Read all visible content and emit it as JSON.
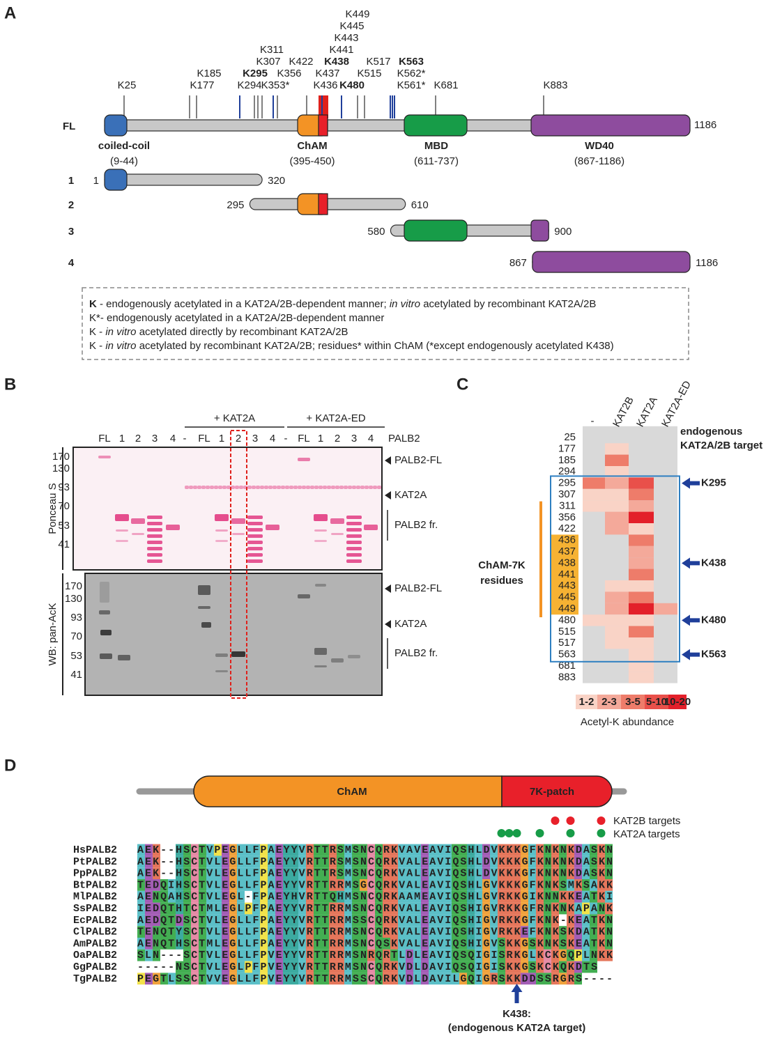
{
  "panel_labels": [
    "A",
    "B",
    "C",
    "D"
  ],
  "panel_a": {
    "sites": [
      {
        "label": "K25",
        "color": "#808080",
        "bold": false
      },
      {
        "label": "K177",
        "color": "#808080",
        "bold": false
      },
      {
        "label": "K185",
        "color": "#808080",
        "bold": false
      },
      {
        "label": "K294",
        "color": "#808080",
        "bold": false
      },
      {
        "label": "K295",
        "color": "#1f3f9a",
        "bold": true
      },
      {
        "label": "K307",
        "color": "#808080",
        "bold": false
      },
      {
        "label": "K311",
        "color": "#808080",
        "bold": false
      },
      {
        "label": "K353*",
        "color": "#1f3f9a",
        "bold": false
      },
      {
        "label": "K356",
        "color": "#808080",
        "bold": false
      },
      {
        "label": "K422",
        "color": "#808080",
        "bold": false
      },
      {
        "label": "K436",
        "color": "#e0201b",
        "bold": false
      },
      {
        "label": "K437",
        "color": "#e0201b",
        "bold": false
      },
      {
        "label": "K438",
        "color": "#1f3f9a",
        "bold": true
      },
      {
        "label": "K441",
        "color": "#e0201b",
        "bold": false
      },
      {
        "label": "K443",
        "color": "#e0201b",
        "bold": false
      },
      {
        "label": "K445",
        "color": "#e0201b",
        "bold": false
      },
      {
        "label": "K449",
        "color": "#e0201b",
        "bold": false
      },
      {
        "label": "K480",
        "color": "#1f3f9a",
        "bold": true
      },
      {
        "label": "K515",
        "color": "#808080",
        "bold": false
      },
      {
        "label": "K517",
        "color": "#808080",
        "bold": false
      },
      {
        "label": "K561*",
        "color": "#1f3f9a",
        "bold": false
      },
      {
        "label": "K562*",
        "color": "#1f3f9a",
        "bold": false
      },
      {
        "label": "K563",
        "color": "#1f3f9a",
        "bold": true
      },
      {
        "label": "K681",
        "color": "#808080",
        "bold": false
      },
      {
        "label": "K883",
        "color": "#808080",
        "bold": false
      }
    ],
    "full_length": {
      "label": "FL",
      "end": 1186
    },
    "domains": [
      {
        "name": "coiled-coil",
        "range": "(9-44)",
        "color": "#3a70b8"
      },
      {
        "name": "ChAM",
        "range": "(395-450)",
        "color": "#f39325"
      },
      {
        "name": "MBD",
        "range": "(611-737)",
        "color": "#179c48"
      },
      {
        "name": "WD40",
        "range": "(867-1186)",
        "color": "#8e4c9e"
      }
    ],
    "fragments": [
      {
        "id": 1,
        "start": 1,
        "end": 320
      },
      {
        "id": 2,
        "start": 295,
        "end": 610
      },
      {
        "id": 3,
        "start": 580,
        "end": 900
      },
      {
        "id": 4,
        "start": 867,
        "end": 1186
      }
    ],
    "legend": [
      [
        "K",
        " - endogenously acetylated in a KAT2A/2B-dependent manner; ",
        "in vitro",
        " acetylated by recombinant KAT2A/2B"
      ],
      [
        "K*",
        "- endogenously acetylated in a KAT2A/2B-dependent manner"
      ],
      [
        "K - ",
        "in vitro",
        " acetylated directly by recombinant KAT2A/2B"
      ],
      [
        "K - ",
        "in vitro",
        " acetylated by recombinant KAT2A/2B; residues* within ChAM (*except endogenously acetylated K438)"
      ]
    ]
  },
  "panel_b": {
    "groups": [
      "+ KAT2A",
      "+ KAT2A-ED"
    ],
    "lanes": [
      "FL",
      "1",
      "2",
      "3",
      "4",
      "-",
      "FL",
      "1",
      "2",
      "3",
      "4",
      "-",
      "FL",
      "1",
      "2",
      "3",
      "4"
    ],
    "lane_title": "PALB2",
    "blots": [
      {
        "label": "Ponceau S",
        "markers": [
          170,
          130,
          93,
          70,
          53,
          41
        ],
        "bands": [
          "PALB2-FL",
          "KAT2A",
          "PALB2 fr."
        ]
      },
      {
        "label": "WB: pan-AcK",
        "markers": [
          170,
          130,
          93,
          70,
          53,
          41
        ],
        "bands": [
          "PALB2-FL",
          "KAT2A",
          "PALB2 fr."
        ]
      }
    ]
  },
  "panel_c": {
    "columns": [
      "-",
      "KAT2B",
      "KAT2A",
      "KAT2A-ED"
    ],
    "rows": [
      25,
      177,
      185,
      294,
      295,
      307,
      311,
      356,
      422,
      436,
      437,
      438,
      441,
      443,
      445,
      449,
      480,
      515,
      517,
      563,
      681,
      883
    ],
    "cells": [
      [
        null,
        null,
        null,
        null
      ],
      [
        null,
        "1-2",
        null,
        null
      ],
      [
        null,
        "3-5",
        null,
        null
      ],
      [
        null,
        "1-2",
        null,
        null
      ],
      [
        "3-5",
        "2-3",
        "5-10",
        null
      ],
      [
        "1-2",
        "1-2",
        "3-5",
        null
      ],
      [
        "1-2",
        "1-2",
        "2-3",
        null
      ],
      [
        null,
        "2-3",
        "10-20",
        null
      ],
      [
        null,
        "2-3",
        "1-2",
        null
      ],
      [
        null,
        null,
        "3-5",
        null
      ],
      [
        null,
        null,
        "2-3",
        null
      ],
      [
        null,
        null,
        "2-3",
        null
      ],
      [
        null,
        null,
        "3-5",
        null
      ],
      [
        null,
        "1-2",
        "1-2",
        null
      ],
      [
        null,
        "2-3",
        "3-5",
        null
      ],
      [
        null,
        "2-3",
        "10-20",
        "2-3"
      ],
      [
        "1-2",
        "1-2",
        "1-2",
        null
      ],
      [
        null,
        "1-2",
        "3-5",
        null
      ],
      [
        null,
        "1-2",
        "1-2",
        null
      ],
      [
        null,
        null,
        "1-2",
        null
      ],
      [
        null,
        null,
        "1-2",
        null
      ],
      [
        null,
        null,
        "1-2",
        null
      ]
    ],
    "target_title": [
      "endogenous",
      "KAT2A/2B target"
    ],
    "targets": [
      {
        "row": 295,
        "label": "K295"
      },
      {
        "row": 438,
        "label": "K438"
      },
      {
        "row": 480,
        "label": "K480"
      },
      {
        "row": 563,
        "label": "K563"
      }
    ],
    "cham_title": [
      "ChAM-7K",
      "residues"
    ],
    "scale": {
      "bins": [
        "1-2",
        "2-3",
        "3-5",
        "5-10",
        "10-20"
      ],
      "colors": [
        "#f9d3c6",
        "#f4a99a",
        "#ee7c6a",
        "#e9504a",
        "#e3202a"
      ],
      "title": "Acetyl-K abundance"
    }
  },
  "panel_d": {
    "domains": [
      "ChAM",
      "7K-patch"
    ],
    "legend": [
      "KAT2B targets",
      "KAT2A targets"
    ],
    "alignment": [
      {
        "name": "HsPALB2",
        "sequence": "AEK--HSCTVPEGLLFPAEYYVRTTRSMSNCQRKVAVEAVIQSHLDVKKKGFKNKNKDASKN"
      },
      {
        "name": "PtPALB2",
        "sequence": "AEK--HSCTVLEGLLFPAEYYVRTTRSMSNCQRKVALEAVIQSHLDVKKKGFKNKNKDASKN"
      },
      {
        "name": "PpPALB2",
        "sequence": "AEK--HSCTVLEGLLFPAEYYVRTTRSMSNCQRKVALEAVIQSHLDVKKKGFKNKNKDASKN"
      },
      {
        "name": "BtPALB2",
        "sequence": "TEDQIHSCTVLEGLLFPAEYYVRTTRRMSGCQRKVALEAVIQSHLGVKKKGFKNKSMKSAKK"
      },
      {
        "name": "MlPALB2",
        "sequence": "AENQAHSCTVLEGL-FPAEYHVRTTQHMSNCQRKAAMEAVIQSHLGVRKKGIKNNKKEATKI"
      },
      {
        "name": "SsPALB2",
        "sequence": "IEDQTHTCTMLEGLPFPAEYYVRTTRRMSNCQRKVALEAVIQSHIGVRKKGFRNKNKAPANK"
      },
      {
        "name": "EcPALB2",
        "sequence": "AEDQTDSCTVLEGLLFPAEYYVRTTRRMSSCQRKVALEAVIQSHIGVRKKGFKNK-KEATKN"
      },
      {
        "name": "ClPALB2",
        "sequence": "TENQTYSCTVLEGLLFPAEYYVRTTRRMSNCQRKVALEAVIQSHIGVRKKEFKNKSKDATKN"
      },
      {
        "name": "AmPALB2",
        "sequence": "AENQTHSCTMLEGLLFPAEYYVRTTRRMSNCQSKVALEAVIQSHIGVSKKGSKNKSKEATKN"
      },
      {
        "name": "OaPALB2",
        "sequence": "SLN---SCTVLEGLLFPVEYYVRTTRRMSNRQRTLDLEAVIQSQIGISRKGLKCKGQPLNKK"
      },
      {
        "name": "GgPALB2",
        "sequence": "-----NSCTVLEGLPFPVEYYVRTTRRMSNCQRKVDLDAVIQSQIGISKKGSKCKQKDTS"
      },
      {
        "name": "TgPALB2",
        "sequence": "PEGTLSSCTVVEGLLFPVEYYVRTTRRMSSCQRKVDLDAVILGQIGRSKKDDSSRGRS----"
      }
    ],
    "arrow_label": [
      "K438:",
      "(endogenous KAT2A target)"
    ]
  }
}
